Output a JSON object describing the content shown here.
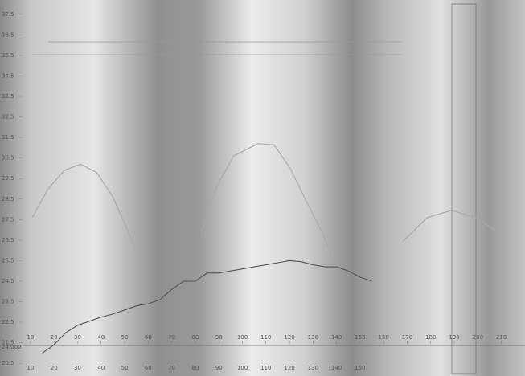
{
  "chart_data": {
    "type": "line",
    "xlim": [
      9,
      219
    ],
    "ylim": [
      20,
      38
    ],
    "xticks": [
      10,
      20,
      30,
      40,
      50,
      60,
      70,
      80,
      90,
      100,
      110,
      120,
      130,
      140,
      150,
      160,
      170,
      180,
      190,
      200,
      210
    ],
    "x2ticks": [
      10,
      20,
      30,
      40,
      50,
      60,
      70,
      80,
      90,
      100,
      110,
      120,
      130,
      140,
      150
    ],
    "yticks": [
      20.5,
      21.5,
      22.5,
      23.5,
      24.5,
      25.5,
      26.5,
      27.5,
      28.5,
      29.5,
      30.5,
      31.5,
      32.5,
      33.5,
      34.5,
      35.5,
      36.5,
      37.5
    ],
    "annotation": "24.000",
    "series": [
      {
        "color": "#a8a8a8",
        "x": [
          10.7,
          17.5,
          24.4,
          31.2,
          38.1,
          45,
          51.8,
          57,
          70,
          82.6,
          89.5,
          96.3,
          106.6,
          113.4,
          120.3,
          127.1,
          134,
          139.1,
          150,
          168.2,
          178.5,
          188.8,
          199,
          209.3
        ],
        "values": [
          27.6,
          29.0,
          29.9,
          30.2,
          29.8,
          28.6,
          26.85,
          25.3,
          null,
          26.85,
          29.2,
          30.6,
          31.2,
          31.15,
          30.0,
          28.4,
          26.85,
          25.3,
          null,
          26.45,
          27.6,
          27.95,
          27.6,
          26.85
        ]
      },
      {
        "color": "#555555",
        "x": [
          15,
          20,
          25,
          30,
          35,
          40,
          45,
          50,
          55,
          60,
          65,
          70,
          75,
          80,
          85,
          90,
          95,
          100,
          105,
          110,
          115,
          120,
          125,
          130,
          135,
          140,
          145,
          150,
          155
        ],
        "values": [
          21.0,
          21.4,
          22.0,
          22.35,
          22.55,
          22.75,
          22.9,
          23.1,
          23.3,
          23.4,
          23.6,
          24.1,
          24.5,
          24.5,
          24.9,
          24.9,
          25.0,
          25.1,
          25.2,
          25.3,
          25.4,
          25.5,
          25.45,
          25.3,
          25.2,
          25.2,
          25.0,
          24.7,
          24.5
        ]
      }
    ]
  }
}
